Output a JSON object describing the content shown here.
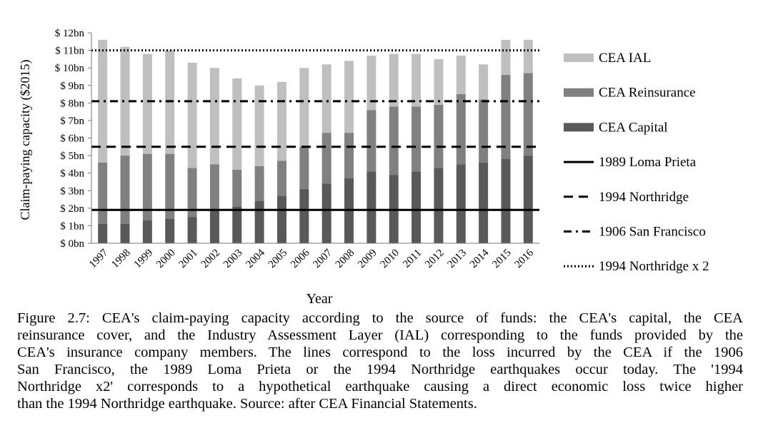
{
  "chart_data": {
    "type": "bar",
    "stacked": true,
    "title": "",
    "xlabel": "Year",
    "ylabel": "Claim-paying  capacity ($2015)",
    "ylim": [
      0,
      12
    ],
    "yticks": [
      {
        "value": 0,
        "label": "$ 0bn"
      },
      {
        "value": 1,
        "label": "$ 1bn"
      },
      {
        "value": 2,
        "label": "$ 2bn"
      },
      {
        "value": 3,
        "label": "$ 3bn"
      },
      {
        "value": 4,
        "label": "$ 4bn"
      },
      {
        "value": 5,
        "label": "$ 5bn"
      },
      {
        "value": 6,
        "label": "$ 6bn"
      },
      {
        "value": 7,
        "label": "$ 7bn"
      },
      {
        "value": 8,
        "label": "$ 8bn"
      },
      {
        "value": 9,
        "label": "$ 9bn"
      },
      {
        "value": 10,
        "label": "$ 10bn"
      },
      {
        "value": 11,
        "label": "$ 11bn"
      },
      {
        "value": 12,
        "label": "$ 12bn"
      }
    ],
    "grid": false,
    "legend_position": "right",
    "categories": [
      "1997",
      "1998",
      "1999",
      "2000",
      "2001",
      "2002",
      "2003",
      "2004",
      "2005",
      "2006",
      "2007",
      "2008",
      "2009",
      "2010",
      "2011",
      "2012",
      "2013",
      "2014",
      "2015",
      "2016"
    ],
    "series": [
      {
        "name": "CEA Capital",
        "color": "#595959",
        "values": [
          1.1,
          1.1,
          1.3,
          1.4,
          1.5,
          1.9,
          2.1,
          2.4,
          2.7,
          3.1,
          3.4,
          3.7,
          4.1,
          3.9,
          4.1,
          4.3,
          4.5,
          4.6,
          4.8,
          5.0
        ]
      },
      {
        "name": "CEA Reinsurance",
        "color": "#808080",
        "values": [
          3.5,
          3.9,
          3.8,
          3.7,
          2.8,
          2.6,
          2.1,
          2.0,
          2.0,
          2.4,
          2.9,
          2.6,
          3.5,
          3.9,
          3.7,
          3.6,
          4.0,
          3.6,
          4.8,
          4.7
        ]
      },
      {
        "name": "CEA IAL",
        "color": "#bfbfbf",
        "values": [
          7.0,
          6.2,
          5.7,
          5.9,
          6.0,
          5.5,
          5.2,
          4.6,
          4.5,
          4.5,
          3.9,
          4.1,
          3.1,
          3.0,
          3.0,
          2.6,
          2.2,
          2.0,
          2.0,
          1.9
        ]
      }
    ],
    "reference_lines": [
      {
        "name": "1989 Loma Prieta",
        "value": 1.9,
        "style": "solid"
      },
      {
        "name": "1994 Northridge",
        "value": 5.5,
        "style": "dashed"
      },
      {
        "name": "1906 San Francisco",
        "value": 8.1,
        "style": "dash-dot"
      },
      {
        "name": "1994 Northridge x 2",
        "value": 11.0,
        "style": "dotted"
      }
    ],
    "legend_order": [
      "CEA IAL",
      "CEA Reinsurance",
      "CEA Capital",
      "1989 Loma Prieta",
      "1994 Northridge",
      "1906 San Francisco",
      "1994 Northridge x 2"
    ]
  },
  "caption": {
    "lines": [
      "Figure 2.7: CEA's claim-paying capacity according to the source of funds: the CEA's capital, the CEA",
      "reinsurance cover, and the Industry Assessment Layer (IAL) corresponding to the funds provided by the",
      "CEA's insurance company members. The lines correspond to the loss incurred by the CEA if the 1906",
      "San Francisco, the 1989 Loma Prieta or the 1994 Northridge earthquakes occur today. The '1994",
      "Northridge x2' corresponds to a hypothetical earthquake causing a direct economic loss twice higher",
      "than the 1994 Northridge earthquake. Source: after CEA Financial Statements."
    ]
  }
}
